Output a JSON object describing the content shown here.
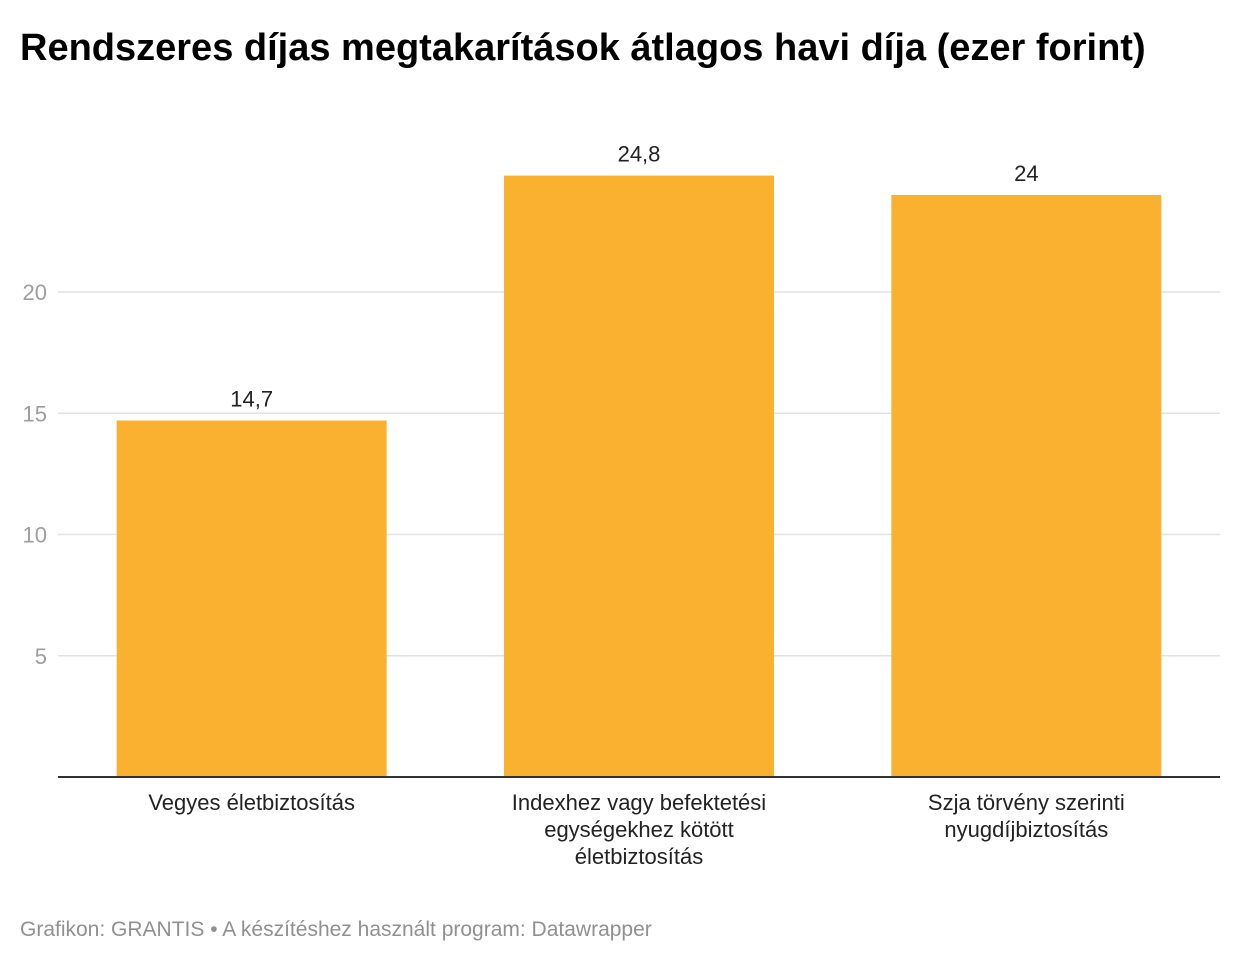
{
  "chart_data": {
    "type": "bar",
    "title": "Rendszeres díjas megtakarítások átlagos havi díja (ezer forint)",
    "categories": [
      [
        "Vegyes életbiztosítás"
      ],
      [
        "Indexhez vagy befektetési",
        "egységekhez kötött",
        "életbiztosítás"
      ],
      [
        "Szja törvény szerinti",
        "nyugdíjbiztosítás"
      ]
    ],
    "values": [
      14.7,
      24.8,
      24
    ],
    "value_labels": [
      "14,7",
      "24,8",
      "24"
    ],
    "yticks": [
      5,
      10,
      15,
      20
    ],
    "ylim": [
      0,
      26.3
    ],
    "grid": true,
    "bar_color": "#FBB130"
  },
  "footer": {
    "credit": "Grafikon: GRANTIS • A készítéshez használt program: Datawrapper"
  }
}
